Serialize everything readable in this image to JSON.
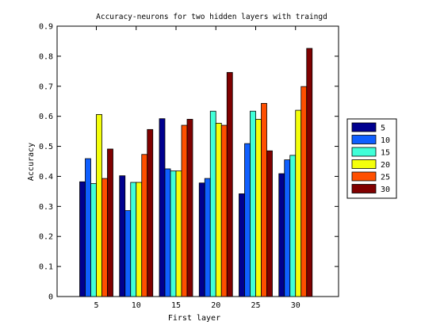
{
  "chart_data": {
    "type": "bar",
    "title": "Accuracy-neurons for two hidden layers with traingd",
    "xlabel": "First layer",
    "ylabel": "Accuracy",
    "categories": [
      "5",
      "10",
      "15",
      "20",
      "25",
      "30"
    ],
    "ylim": [
      0,
      0.9
    ],
    "yticks": [
      "0",
      "0.1",
      "0.2",
      "0.3",
      "0.4",
      "0.5",
      "0.6",
      "0.7",
      "0.8",
      "0.9"
    ],
    "grid": false,
    "legend_position": "right",
    "series": [
      {
        "name": "5",
        "color": "#00008f",
        "values": [
          0.382,
          0.402,
          0.592,
          0.378,
          0.342,
          0.409
        ]
      },
      {
        "name": "10",
        "color": "#0f5fff",
        "values": [
          0.459,
          0.286,
          0.425,
          0.393,
          0.509,
          0.455
        ]
      },
      {
        "name": "15",
        "color": "#40ffd8",
        "values": [
          0.376,
          0.38,
          0.418,
          0.617,
          0.617,
          0.47
        ]
      },
      {
        "name": "20",
        "color": "#f4ff0b",
        "values": [
          0.606,
          0.38,
          0.418,
          0.577,
          0.59,
          0.62
        ]
      },
      {
        "name": "25",
        "color": "#ff4f00",
        "values": [
          0.393,
          0.473,
          0.57,
          0.57,
          0.643,
          0.699
        ]
      },
      {
        "name": "30",
        "color": "#800000",
        "values": [
          0.491,
          0.556,
          0.59,
          0.746,
          0.485,
          0.826
        ]
      }
    ]
  }
}
